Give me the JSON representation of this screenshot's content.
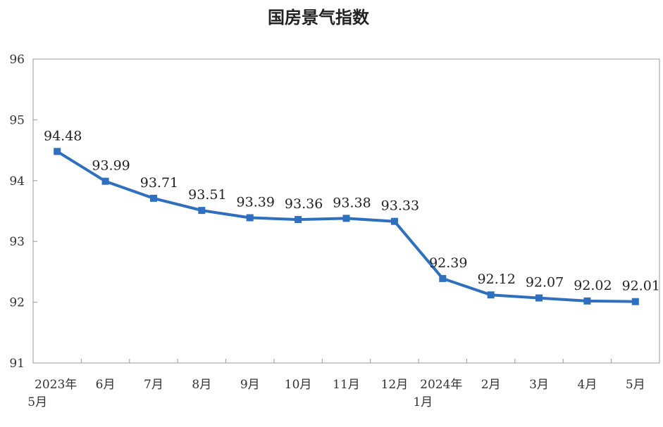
{
  "chart_data": {
    "type": "line",
    "title": "国房景气指数",
    "xlabel": "",
    "ylabel": "",
    "ylim": [
      91,
      96
    ],
    "yticks": [
      91,
      92,
      93,
      94,
      95,
      96
    ],
    "grid": false,
    "legend": "none",
    "line_color": "#2e6fbf",
    "categories": [
      [
        "2023年",
        "5月"
      ],
      [
        "6月"
      ],
      [
        "7月"
      ],
      [
        "8月"
      ],
      [
        "9月"
      ],
      [
        "10月"
      ],
      [
        "11月"
      ],
      [
        "12月"
      ],
      [
        "2024年",
        "1月"
      ],
      [
        "2月"
      ],
      [
        "3月"
      ],
      [
        "4月"
      ],
      [
        "5月"
      ]
    ],
    "values": [
      94.48,
      93.99,
      93.71,
      93.51,
      93.39,
      93.36,
      93.38,
      93.33,
      92.39,
      92.12,
      92.07,
      92.02,
      92.01
    ],
    "data_labels": [
      "94.48",
      "93.99",
      "93.71",
      "93.51",
      "93.39",
      "93.36",
      "93.38",
      "93.33",
      "92.39",
      "92.12",
      "92.07",
      "92.02",
      "92.01"
    ]
  }
}
